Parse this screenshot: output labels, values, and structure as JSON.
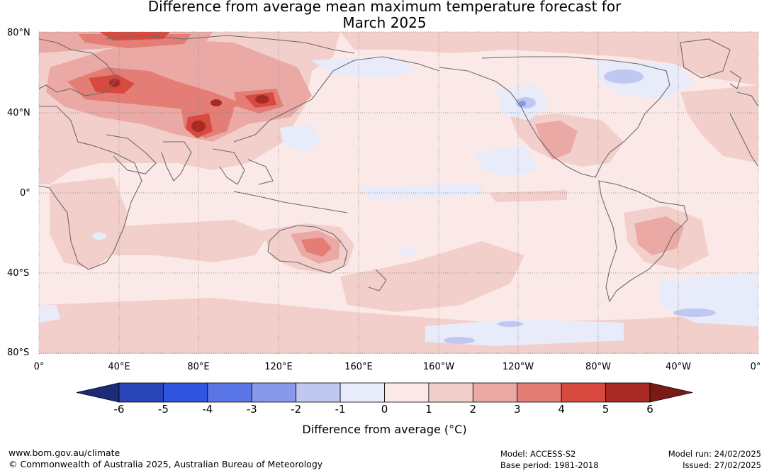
{
  "title_line1": "Difference from average mean maximum temperature forecast for",
  "title_line2": "March 2025",
  "lat_labels": [
    "80°N",
    "40°N",
    "0°",
    "40°S",
    "80°S"
  ],
  "lon_labels": [
    "0°",
    "40°E",
    "80°E",
    "120°E",
    "160°E",
    "160°W",
    "120°W",
    "80°W",
    "40°W",
    "0°"
  ],
  "colorbar": {
    "ticks": [
      "-6",
      "-5",
      "-4",
      "-3",
      "-2",
      "-1",
      "0",
      "1",
      "2",
      "3",
      "4",
      "5",
      "6"
    ],
    "colors": [
      "#1c2a7a",
      "#2a45b8",
      "#2f55e0",
      "#5a76e6",
      "#8898ea",
      "#c0c8f2",
      "#e8ecfa",
      "#fbe9e7",
      "#f3cfcb",
      "#eaa9a4",
      "#e47d75",
      "#d84940",
      "#a92a25",
      "#7a1a17"
    ],
    "label": "Difference from average (°C)"
  },
  "footer": {
    "url": "www.bom.gov.au/climate",
    "copyright": "© Commonwealth of Australia 2025, Australian Bureau of Meteorology",
    "model": "Model: ACCESS-S2",
    "base_period": "Base period: 1981-2018",
    "model_run": "Model run: 24/02/2025",
    "issued": "Issued: 27/02/2025"
  }
}
